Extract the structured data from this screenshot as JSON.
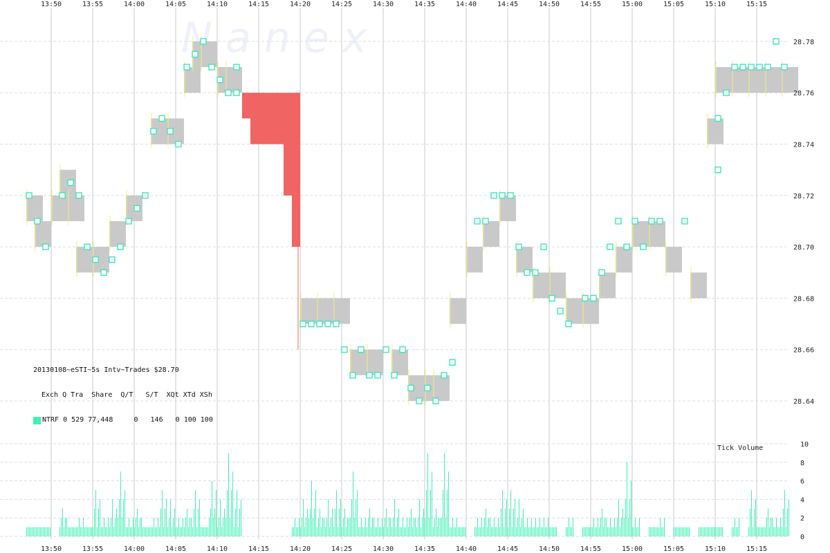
{
  "watermark": "N a n e x",
  "info": {
    "title": "20130108~eSTI~5s Intv~Trades $28.70",
    "header": "Exch Q Tra  Share  Q/T   S/T  XQt XTd XSh",
    "row": "NTRF 0 529 77,448     0   146   0 100 100",
    "swatch_color": "#3ef0b4"
  },
  "chart_data": [
    {
      "type": "scatter",
      "title": "",
      "x_tick_labels": [
        "13:50",
        "13:55",
        "14:00",
        "14:05",
        "14:10",
        "14:15",
        "14:20",
        "14:25",
        "14:30",
        "14:35",
        "14:40",
        "14:45",
        "14:50",
        "14:55",
        "15:00",
        "15:05",
        "15:10",
        "15:15"
      ],
      "y_tick_labels": [
        "28.64",
        "28.66",
        "28.68",
        "28.70",
        "28.72",
        "28.74",
        "28.76",
        "28.78"
      ],
      "ylim": [
        28.625,
        28.79
      ],
      "grid": true,
      "colors": {
        "quote_band": "#c9c9c9",
        "trade": "#2ee8b4",
        "crossed": "#f06464",
        "wick": "#f0f07a"
      },
      "bands": [
        {
          "t": "13:47",
          "bid": 28.71,
          "ask": 28.72
        },
        {
          "t": "13:48",
          "bid": 28.7,
          "ask": 28.71
        },
        {
          "t": "13:50",
          "bid": 28.71,
          "ask": 28.72
        },
        {
          "t": "13:51",
          "bid": 28.72,
          "ask": 28.73
        },
        {
          "t": "13:52",
          "bid": 28.71,
          "ask": 28.72
        },
        {
          "t": "13:53",
          "bid": 28.69,
          "ask": 28.7
        },
        {
          "t": "13:55",
          "bid": 28.69,
          "ask": 28.7
        },
        {
          "t": "13:57",
          "bid": 28.7,
          "ask": 28.71
        },
        {
          "t": "13:59",
          "bid": 28.71,
          "ask": 28.72
        },
        {
          "t": "14:02",
          "bid": 28.74,
          "ask": 28.75
        },
        {
          "t": "14:04",
          "bid": 28.74,
          "ask": 28.75
        },
        {
          "t": "14:06",
          "bid": 28.76,
          "ask": 28.77
        },
        {
          "t": "14:07",
          "bid": 28.77,
          "ask": 28.78
        },
        {
          "t": "14:08",
          "bid": 28.77,
          "ask": 28.78
        },
        {
          "t": "14:10",
          "bid": 28.76,
          "ask": 28.77
        },
        {
          "t": "14:11",
          "bid": 28.76,
          "ask": 28.77
        },
        {
          "t": "14:20",
          "bid": 28.67,
          "ask": 28.68
        },
        {
          "t": "14:22",
          "bid": 28.67,
          "ask": 28.68
        },
        {
          "t": "14:24",
          "bid": 28.67,
          "ask": 28.68
        },
        {
          "t": "14:26",
          "bid": 28.65,
          "ask": 28.66
        },
        {
          "t": "14:28",
          "bid": 28.65,
          "ask": 28.66
        },
        {
          "t": "14:31",
          "bid": 28.65,
          "ask": 28.66
        },
        {
          "t": "14:33",
          "bid": 28.64,
          "ask": 28.65
        },
        {
          "t": "14:35",
          "bid": 28.64,
          "ask": 28.65
        },
        {
          "t": "14:36",
          "bid": 28.64,
          "ask": 28.65
        },
        {
          "t": "14:38",
          "bid": 28.67,
          "ask": 28.68
        },
        {
          "t": "14:40",
          "bid": 28.69,
          "ask": 28.7
        },
        {
          "t": "14:42",
          "bid": 28.7,
          "ask": 28.71
        },
        {
          "t": "14:44",
          "bid": 28.71,
          "ask": 28.72
        },
        {
          "t": "14:46",
          "bid": 28.69,
          "ask": 28.7
        },
        {
          "t": "14:48",
          "bid": 28.68,
          "ask": 28.69
        },
        {
          "t": "14:50",
          "bid": 28.68,
          "ask": 28.69
        },
        {
          "t": "14:52",
          "bid": 28.67,
          "ask": 28.68
        },
        {
          "t": "14:54",
          "bid": 28.67,
          "ask": 28.68
        },
        {
          "t": "14:56",
          "bid": 28.68,
          "ask": 28.69
        },
        {
          "t": "14:58",
          "bid": 28.69,
          "ask": 28.7
        },
        {
          "t": "15:00",
          "bid": 28.7,
          "ask": 28.71
        },
        {
          "t": "15:02",
          "bid": 28.7,
          "ask": 28.71
        },
        {
          "t": "15:04",
          "bid": 28.69,
          "ask": 28.7
        },
        {
          "t": "15:07",
          "bid": 28.68,
          "ask": 28.69
        },
        {
          "t": "15:09",
          "bid": 28.74,
          "ask": 28.75
        },
        {
          "t": "15:10",
          "bid": 28.76,
          "ask": 28.77
        },
        {
          "t": "15:12",
          "bid": 28.76,
          "ask": 28.77
        },
        {
          "t": "15:14",
          "bid": 28.76,
          "ask": 28.77
        },
        {
          "t": "15:16",
          "bid": 28.76,
          "ask": 28.77
        },
        {
          "t": "15:18",
          "bid": 28.76,
          "ask": 28.77
        }
      ],
      "crossed_blocks": [
        {
          "t": "14:13",
          "lo": 28.75,
          "hi": 28.76
        },
        {
          "t": "14:14",
          "lo": 28.74,
          "hi": 28.76
        },
        {
          "t": "14:15",
          "lo": 28.74,
          "hi": 28.76
        },
        {
          "t": "14:16",
          "lo": 28.74,
          "hi": 28.76
        },
        {
          "t": "14:17",
          "lo": 28.74,
          "hi": 28.76
        },
        {
          "t": "14:18",
          "lo": 28.72,
          "hi": 28.76
        },
        {
          "t": "14:19",
          "lo": 28.7,
          "hi": 28.76
        }
      ],
      "trades": [
        {
          "t": "13:47",
          "p": 28.72
        },
        {
          "t": "13:48",
          "p": 28.71
        },
        {
          "t": "13:49",
          "p": 28.7
        },
        {
          "t": "13:51",
          "p": 28.72
        },
        {
          "t": "13:52",
          "p": 28.725
        },
        {
          "t": "13:53",
          "p": 28.72
        },
        {
          "t": "13:54",
          "p": 28.7
        },
        {
          "t": "13:55",
          "p": 28.695
        },
        {
          "t": "13:56",
          "p": 28.69
        },
        {
          "t": "13:57",
          "p": 28.695
        },
        {
          "t": "13:58",
          "p": 28.7
        },
        {
          "t": "13:59",
          "p": 28.71
        },
        {
          "t": "14:00",
          "p": 28.715
        },
        {
          "t": "14:01",
          "p": 28.72
        },
        {
          "t": "14:02",
          "p": 28.745
        },
        {
          "t": "14:03",
          "p": 28.75
        },
        {
          "t": "14:04",
          "p": 28.745
        },
        {
          "t": "14:05",
          "p": 28.74
        },
        {
          "t": "14:06",
          "p": 28.77
        },
        {
          "t": "14:07",
          "p": 28.775
        },
        {
          "t": "14:08",
          "p": 28.78
        },
        {
          "t": "14:09",
          "p": 28.77
        },
        {
          "t": "14:10",
          "p": 28.765
        },
        {
          "t": "14:11",
          "p": 28.76
        },
        {
          "t": "14:12",
          "p": 28.77
        },
        {
          "t": "14:12",
          "p": 28.76
        },
        {
          "t": "14:20",
          "p": 28.67
        },
        {
          "t": "14:21",
          "p": 28.67
        },
        {
          "t": "14:22",
          "p": 28.67
        },
        {
          "t": "14:23",
          "p": 28.67
        },
        {
          "t": "14:24",
          "p": 28.67
        },
        {
          "t": "14:25",
          "p": 28.66
        },
        {
          "t": "14:26",
          "p": 28.65
        },
        {
          "t": "14:27",
          "p": 28.66
        },
        {
          "t": "14:28",
          "p": 28.65
        },
        {
          "t": "14:29",
          "p": 28.65
        },
        {
          "t": "14:30",
          "p": 28.66
        },
        {
          "t": "14:31",
          "p": 28.65
        },
        {
          "t": "14:32",
          "p": 28.66
        },
        {
          "t": "14:33",
          "p": 28.645
        },
        {
          "t": "14:34",
          "p": 28.64
        },
        {
          "t": "14:35",
          "p": 28.645
        },
        {
          "t": "14:36",
          "p": 28.64
        },
        {
          "t": "14:37",
          "p": 28.65
        },
        {
          "t": "14:38",
          "p": 28.655
        },
        {
          "t": "14:41",
          "p": 28.71
        },
        {
          "t": "14:42",
          "p": 28.71
        },
        {
          "t": "14:43",
          "p": 28.72
        },
        {
          "t": "14:44",
          "p": 28.72
        },
        {
          "t": "14:45",
          "p": 28.72
        },
        {
          "t": "14:46",
          "p": 28.7
        },
        {
          "t": "14:47",
          "p": 28.69
        },
        {
          "t": "14:48",
          "p": 28.69
        },
        {
          "t": "14:49",
          "p": 28.7
        },
        {
          "t": "14:50",
          "p": 28.68
        },
        {
          "t": "14:51",
          "p": 28.675
        },
        {
          "t": "14:52",
          "p": 28.67
        },
        {
          "t": "14:54",
          "p": 28.68
        },
        {
          "t": "14:55",
          "p": 28.68
        },
        {
          "t": "14:56",
          "p": 28.69
        },
        {
          "t": "14:57",
          "p": 28.7
        },
        {
          "t": "14:58",
          "p": 28.71
        },
        {
          "t": "14:59",
          "p": 28.7
        },
        {
          "t": "15:00",
          "p": 28.71
        },
        {
          "t": "15:01",
          "p": 28.7
        },
        {
          "t": "15:02",
          "p": 28.71
        },
        {
          "t": "15:03",
          "p": 28.71
        },
        {
          "t": "15:06",
          "p": 28.71
        },
        {
          "t": "15:10",
          "p": 28.73
        },
        {
          "t": "15:10",
          "p": 28.75
        },
        {
          "t": "15:11",
          "p": 28.76
        },
        {
          "t": "15:12",
          "p": 28.77
        },
        {
          "t": "15:13",
          "p": 28.77
        },
        {
          "t": "15:14",
          "p": 28.77
        },
        {
          "t": "15:15",
          "p": 28.77
        },
        {
          "t": "15:16",
          "p": 28.77
        },
        {
          "t": "15:17",
          "p": 28.78
        },
        {
          "t": "15:18",
          "p": 28.77
        }
      ]
    },
    {
      "type": "bar",
      "title": "Tick Volume",
      "y_tick_labels": [
        "0",
        "2",
        "4",
        "6",
        "8",
        "10"
      ],
      "ylim": [
        0,
        10
      ],
      "color": "#3ef0b4",
      "volume": [
        {
          "t": "13:47",
          "v": 1
        },
        {
          "t": "13:48",
          "v": 1
        },
        {
          "t": "13:49",
          "v": 1
        },
        {
          "t": "13:51",
          "v": 3
        },
        {
          "t": "13:52",
          "v": 1
        },
        {
          "t": "13:53",
          "v": 2
        },
        {
          "t": "13:54",
          "v": 1
        },
        {
          "t": "13:55",
          "v": 5
        },
        {
          "t": "13:56",
          "v": 2
        },
        {
          "t": "13:57",
          "v": 4
        },
        {
          "t": "13:58",
          "v": 7
        },
        {
          "t": "13:59",
          "v": 2
        },
        {
          "t": "14:00",
          "v": 3
        },
        {
          "t": "14:01",
          "v": 1
        },
        {
          "t": "14:02",
          "v": 2
        },
        {
          "t": "14:03",
          "v": 5
        },
        {
          "t": "14:04",
          "v": 4
        },
        {
          "t": "14:05",
          "v": 2
        },
        {
          "t": "14:06",
          "v": 3
        },
        {
          "t": "14:07",
          "v": 5
        },
        {
          "t": "14:08",
          "v": 1
        },
        {
          "t": "14:09",
          "v": 6
        },
        {
          "t": "14:10",
          "v": 4
        },
        {
          "t": "14:11",
          "v": 9
        },
        {
          "t": "14:12",
          "v": 5
        },
        {
          "t": "14:19",
          "v": 2
        },
        {
          "t": "14:20",
          "v": 4
        },
        {
          "t": "14:21",
          "v": 6
        },
        {
          "t": "14:22",
          "v": 3
        },
        {
          "t": "14:23",
          "v": 4
        },
        {
          "t": "14:24",
          "v": 5
        },
        {
          "t": "14:25",
          "v": 3
        },
        {
          "t": "14:26",
          "v": 7
        },
        {
          "t": "14:27",
          "v": 2
        },
        {
          "t": "14:28",
          "v": 3
        },
        {
          "t": "14:29",
          "v": 2
        },
        {
          "t": "14:30",
          "v": 3
        },
        {
          "t": "14:31",
          "v": 4
        },
        {
          "t": "14:32",
          "v": 2
        },
        {
          "t": "14:33",
          "v": 3
        },
        {
          "t": "14:34",
          "v": 4
        },
        {
          "t": "14:35",
          "v": 9
        },
        {
          "t": "14:36",
          "v": 3
        },
        {
          "t": "14:37",
          "v": 9
        },
        {
          "t": "14:38",
          "v": 2
        },
        {
          "t": "14:39",
          "v": 1
        },
        {
          "t": "14:41",
          "v": 2
        },
        {
          "t": "14:42",
          "v": 3
        },
        {
          "t": "14:43",
          "v": 2
        },
        {
          "t": "14:44",
          "v": 5
        },
        {
          "t": "14:45",
          "v": 5
        },
        {
          "t": "14:46",
          "v": 4
        },
        {
          "t": "14:47",
          "v": 2
        },
        {
          "t": "14:48",
          "v": 2
        },
        {
          "t": "14:49",
          "v": 2
        },
        {
          "t": "14:50",
          "v": 1
        },
        {
          "t": "14:52",
          "v": 2
        },
        {
          "t": "14:54",
          "v": 1
        },
        {
          "t": "14:55",
          "v": 2
        },
        {
          "t": "14:56",
          "v": 3
        },
        {
          "t": "14:57",
          "v": 2
        },
        {
          "t": "14:58",
          "v": 4
        },
        {
          "t": "14:59",
          "v": 8
        },
        {
          "t": "15:00",
          "v": 2
        },
        {
          "t": "15:02",
          "v": 1
        },
        {
          "t": "15:03",
          "v": 2
        },
        {
          "t": "15:05",
          "v": 1
        },
        {
          "t": "15:06",
          "v": 1
        },
        {
          "t": "15:08",
          "v": 1
        },
        {
          "t": "15:09",
          "v": 1
        },
        {
          "t": "15:10",
          "v": 1
        },
        {
          "t": "15:12",
          "v": 2
        },
        {
          "t": "15:14",
          "v": 5
        },
        {
          "t": "15:15",
          "v": 1
        },
        {
          "t": "15:16",
          "v": 3
        },
        {
          "t": "15:17",
          "v": 2
        },
        {
          "t": "15:18",
          "v": 5
        }
      ]
    }
  ]
}
